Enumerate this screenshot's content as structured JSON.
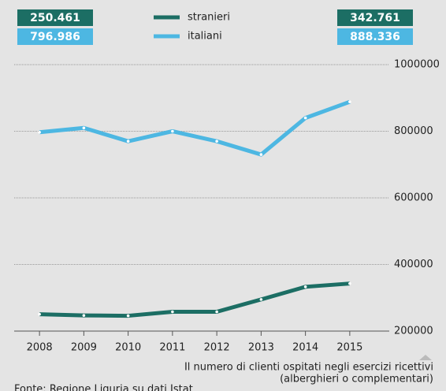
{
  "chart_data": {
    "type": "line",
    "categories": [
      "2008",
      "2009",
      "2010",
      "2011",
      "2012",
      "2013",
      "2014",
      "2015"
    ],
    "series": [
      {
        "name": "stranieri",
        "color": "#1c6e64",
        "values": [
          250461,
          247000,
          246000,
          258000,
          258000,
          295000,
          333000,
          342761
        ],
        "value_labels": [
          "250.461",
          null,
          null,
          null,
          null,
          null,
          null,
          "342.761"
        ]
      },
      {
        "name": "italiani",
        "color": "#4db7e2",
        "values": [
          796986,
          810000,
          770000,
          800000,
          770000,
          730000,
          840000,
          888336
        ],
        "value_labels": [
          "796.986",
          null,
          null,
          null,
          null,
          null,
          null,
          "888.336"
        ]
      }
    ],
    "ylim": [
      200000,
      1000000
    ],
    "yticks": [
      200000,
      400000,
      600000,
      800000,
      1000000
    ],
    "grid": true,
    "annotations": [
      "Il numero di clienti ospitati negli esercizi ricettivi",
      "(alberghieri o complementari)"
    ],
    "source": "Fonte: Regione Liguria su dati Istat"
  }
}
